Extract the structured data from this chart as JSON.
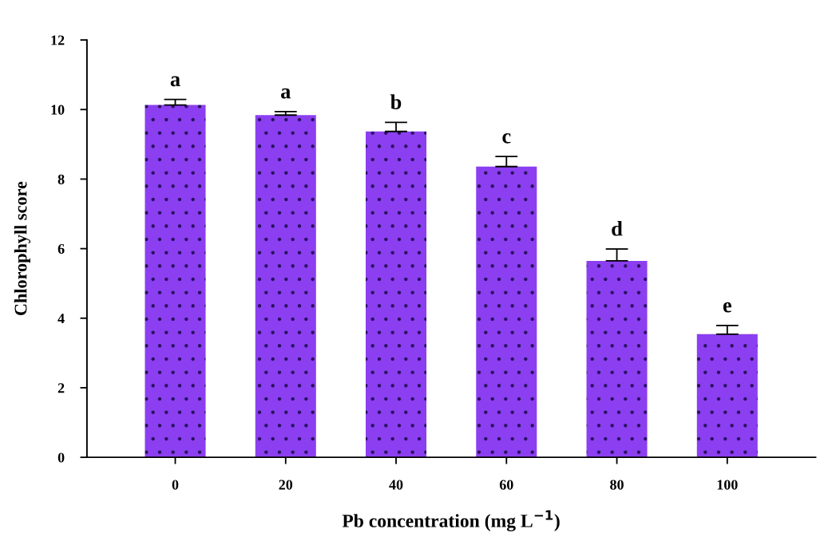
{
  "chart_data": {
    "type": "bar",
    "xlabel": "Pb concentration (mg L$^{−1}$)",
    "ylabel": "Chlorophyll score",
    "categories": [
      "0",
      "20",
      "40",
      "60",
      "80",
      "100"
    ],
    "values": [
      10.13,
      9.84,
      9.37,
      8.36,
      5.65,
      3.54
    ],
    "errors": [
      0.16,
      0.1,
      0.26,
      0.29,
      0.34,
      0.25
    ],
    "color": "#8b3ff0",
    "ylim": [
      0,
      12
    ],
    "yticks": [
      0,
      2,
      4,
      6,
      8,
      10,
      12
    ],
    "grid": false,
    "legend": false,
    "annotations": [
      {
        "text": "a",
        "x": "0",
        "y": 10.29
      },
      {
        "text": "a",
        "x": "20",
        "y": 9.94
      },
      {
        "text": "b",
        "x": "40",
        "y": 9.63
      },
      {
        "text": "c",
        "x": "60",
        "y": 8.65
      },
      {
        "text": "d",
        "x": "80",
        "y": 5.99
      },
      {
        "text": "e",
        "x": "100",
        "y": 3.79
      }
    ]
  }
}
